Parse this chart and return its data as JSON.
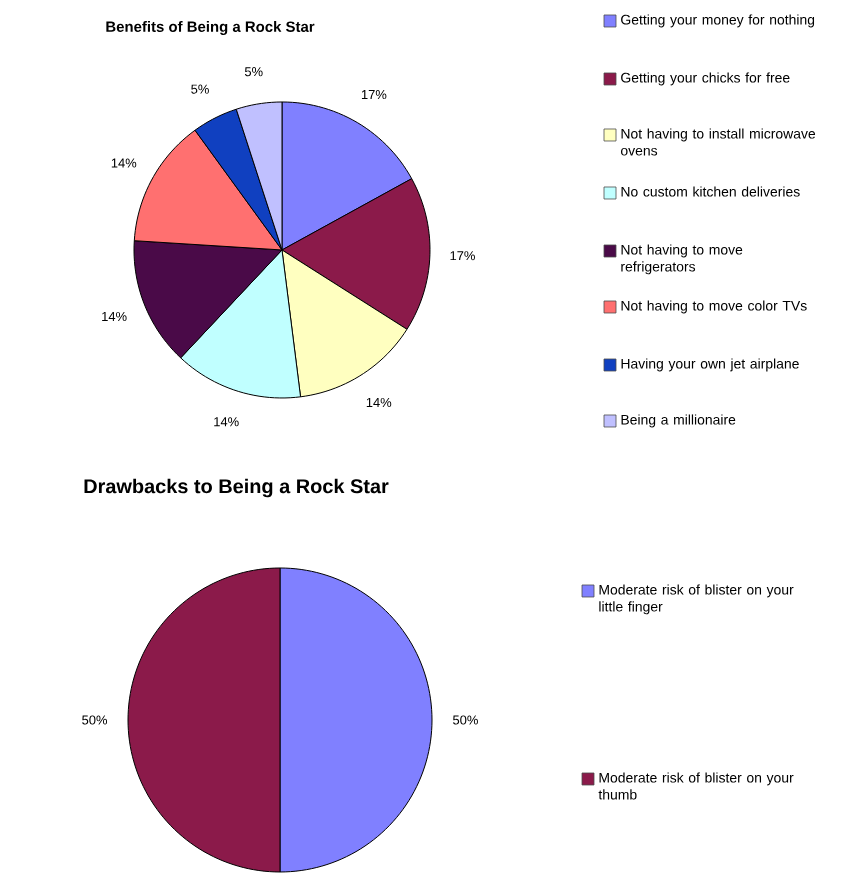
{
  "chart_data": [
    {
      "type": "pie",
      "title": "Benefits of Being a Rock Star",
      "legend": "right",
      "categories": [
        "Getting your money for nothing",
        "Getting your chicks for free",
        "Not having to install microwave ovens",
        "No custom kitchen deliveries",
        "Not having to move refrigerators",
        "Not having to move color TVs",
        "Having your own jet airplane",
        "Being a millionaire"
      ],
      "values": [
        17,
        17,
        14,
        14,
        14,
        14,
        5,
        5
      ],
      "value_labels": [
        "17%",
        "17%",
        "14%",
        "14%",
        "14%",
        "14%",
        "5%",
        "5%"
      ],
      "colors": [
        "#8080ff",
        "#8b1a4a",
        "#ffffc0",
        "#c0ffff",
        "#4a0a48",
        "#ff7070",
        "#1040c0",
        "#c0c0ff"
      ]
    },
    {
      "type": "pie",
      "title": "Drawbacks to Being a Rock Star",
      "legend": "right",
      "categories": [
        "Moderate risk of blister on your little finger",
        "Moderate risk of blister on your thumb"
      ],
      "values": [
        50,
        50
      ],
      "value_labels": [
        "50%",
        "50%"
      ],
      "colors": [
        "#8080ff",
        "#8b1a4a"
      ]
    }
  ]
}
